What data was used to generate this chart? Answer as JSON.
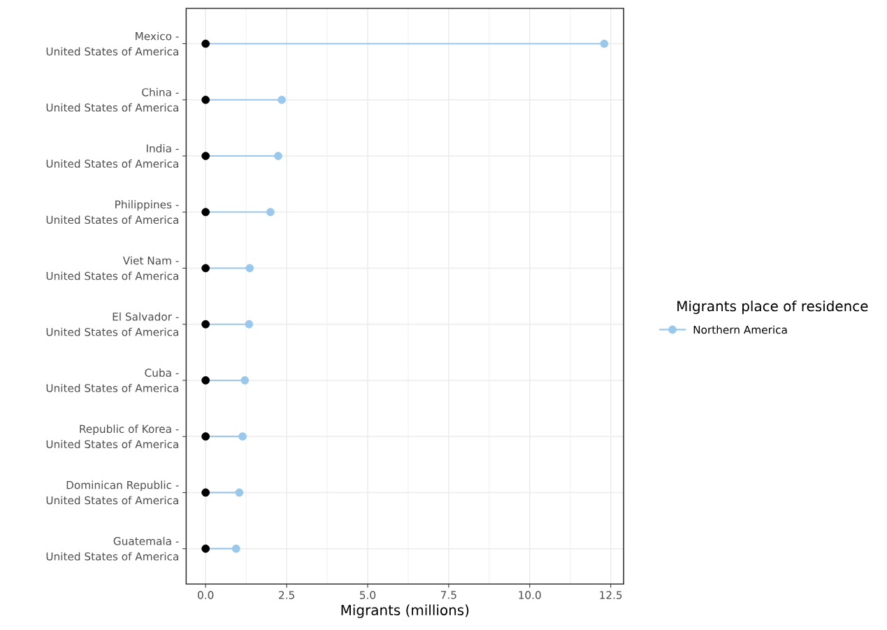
{
  "chart_data": {
    "type": "lollipop",
    "orientation": "horizontal",
    "categories": [
      "Mexico - United States of America",
      "China - United States of America",
      "India - United States of America",
      "Philippines - United States of America",
      "Viet Nam - United States of America",
      "El Salvador - United States of America",
      "Cuba - United States of America",
      "Republic of Korea - United States of America",
      "Dominican Republic - United States of America",
      "Guatemala - United States of America"
    ],
    "series": [
      {
        "name": "Northern America",
        "color": "#9ac8ec",
        "values": [
          12.3,
          2.35,
          2.24,
          2.0,
          1.36,
          1.34,
          1.21,
          1.14,
          1.04,
          0.94
        ]
      },
      {
        "type": "scatter",
        "color": "#000000",
        "values": [
          0,
          0,
          0,
          0,
          0,
          0,
          0,
          0,
          0,
          0
        ]
      }
    ],
    "xlabel": "Migrants (millions)",
    "legend_title": "Migrants place of residence",
    "xlim": [
      -0.6,
      12.9
    ],
    "xticks": [
      {
        "value": 0,
        "label": "0.0"
      },
      {
        "value": 2.5,
        "label": "2.5"
      },
      {
        "value": 5,
        "label": "5.0"
      },
      {
        "value": 7.5,
        "label": "7.5"
      },
      {
        "value": 10,
        "label": "10.0"
      },
      {
        "value": 12.5,
        "label": "12.5"
      }
    ],
    "grid": true,
    "legend": "right",
    "marker": "circle"
  }
}
